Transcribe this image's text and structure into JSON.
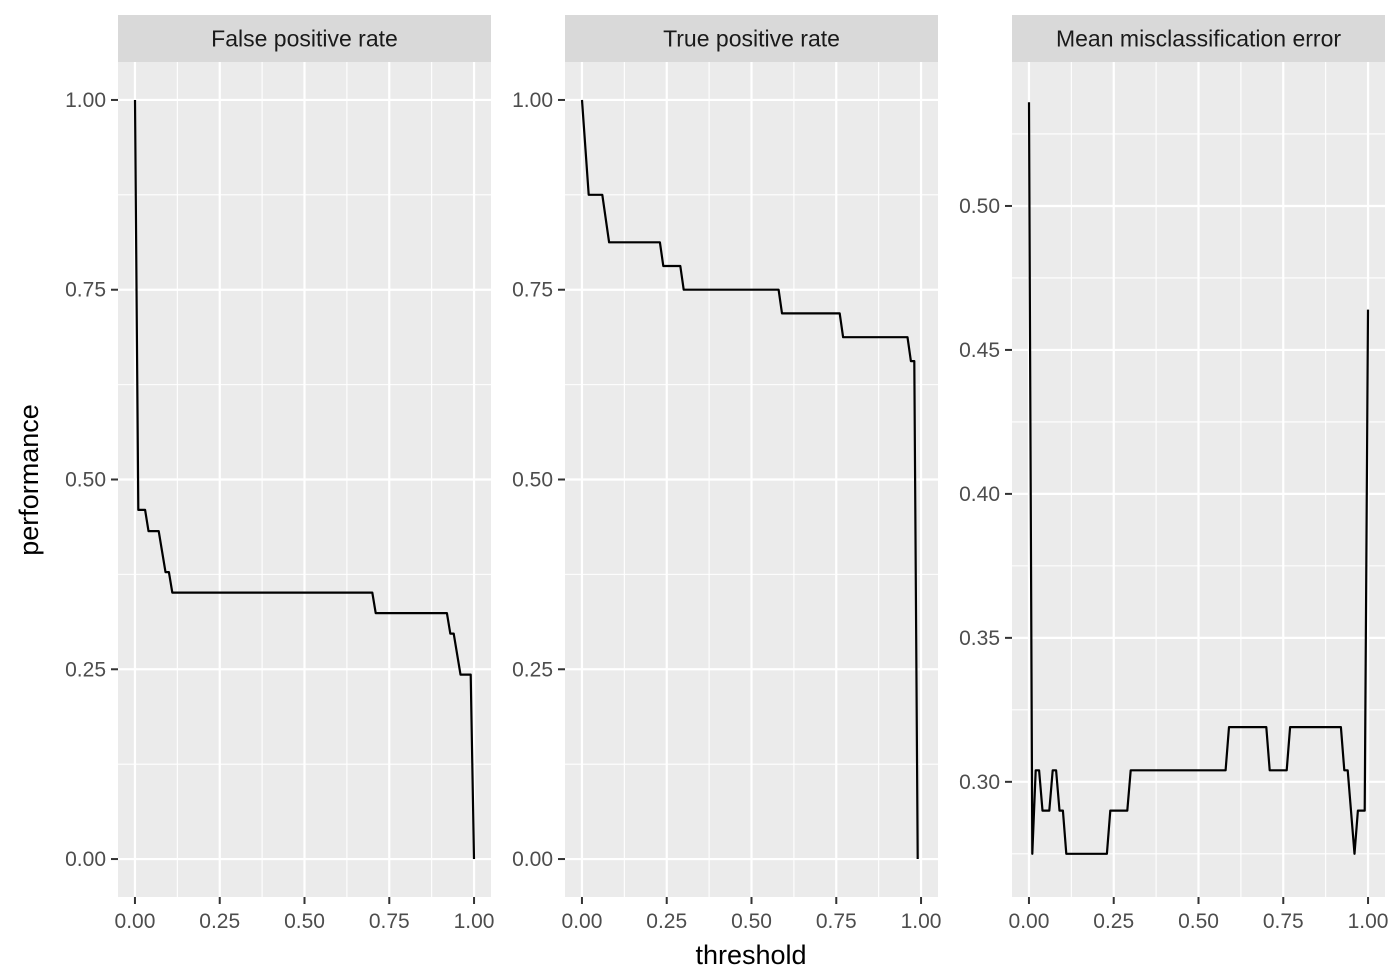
{
  "chart_data": {
    "type": "line",
    "xlabel": "threshold",
    "ylabel": "performance",
    "grid": true,
    "panel_background": "#EBEBEB",
    "strip_background": "#D9D9D9",
    "line_color": "#000000",
    "x_ticks": [
      "0.00",
      "0.25",
      "0.50",
      "0.75",
      "1.00"
    ],
    "x_tick_values": [
      0,
      0.25,
      0.5,
      0.75,
      1
    ],
    "xlim": [
      -0.05,
      1.05
    ],
    "panels": [
      {
        "title": "False positive rate",
        "ylim": [
          -0.05,
          1.05
        ],
        "y_ticks": [
          "0.00",
          "0.25",
          "0.50",
          "0.75",
          "1.00"
        ],
        "y_tick_values": [
          0,
          0.25,
          0.5,
          0.75,
          1
        ],
        "series": [
          {
            "x": [
              0,
              0.01,
              0.03,
              0.04,
              0.07,
              0.08,
              0.09,
              0.1,
              0.11,
              0.7,
              0.71,
              0.92,
              0.93,
              0.94,
              0.96,
              0.98,
              0.99,
              1.0
            ],
            "y": [
              1.0,
              0.46,
              0.46,
              0.432,
              0.432,
              0.405,
              0.378,
              0.378,
              0.351,
              0.351,
              0.324,
              0.324,
              0.297,
              0.297,
              0.243,
              0.243,
              0.243,
              0.0
            ]
          }
        ]
      },
      {
        "title": "True positive rate",
        "ylim": [
          -0.05,
          1.05
        ],
        "y_ticks": [
          "0.00",
          "0.25",
          "0.50",
          "0.75",
          "1.00"
        ],
        "y_tick_values": [
          0,
          0.25,
          0.5,
          0.75,
          1
        ],
        "series": [
          {
            "x": [
              0,
              0.02,
              0.06,
              0.08,
              0.23,
              0.24,
              0.29,
              0.3,
              0.58,
              0.59,
              0.76,
              0.77,
              0.96,
              0.97,
              0.98,
              0.99
            ],
            "y": [
              1.0,
              0.875,
              0.875,
              0.8125,
              0.8125,
              0.78125,
              0.78125,
              0.75,
              0.75,
              0.71875,
              0.71875,
              0.6875,
              0.6875,
              0.656,
              0.656,
              0.0
            ]
          }
        ]
      },
      {
        "title": "Mean misclassification error",
        "ylim": [
          0.26,
          0.55
        ],
        "y_ticks": [
          "0.30",
          "0.35",
          "0.40",
          "0.45",
          "0.50"
        ],
        "y_tick_values": [
          0.3,
          0.35,
          0.4,
          0.45,
          0.5
        ],
        "series": [
          {
            "x": [
              0,
              0.01,
              0.02,
              0.03,
              0.04,
              0.06,
              0.07,
              0.08,
              0.09,
              0.1,
              0.11,
              0.23,
              0.24,
              0.29,
              0.3,
              0.58,
              0.59,
              0.7,
              0.71,
              0.76,
              0.77,
              0.92,
              0.93,
              0.94,
              0.96,
              0.97,
              0.98,
              0.99,
              1.0
            ],
            "y": [
              0.536,
              0.275,
              0.304,
              0.304,
              0.29,
              0.29,
              0.304,
              0.304,
              0.29,
              0.29,
              0.275,
              0.275,
              0.29,
              0.29,
              0.304,
              0.304,
              0.319,
              0.319,
              0.304,
              0.304,
              0.319,
              0.319,
              0.304,
              0.304,
              0.275,
              0.29,
              0.29,
              0.29,
              0.464
            ]
          }
        ]
      }
    ]
  }
}
